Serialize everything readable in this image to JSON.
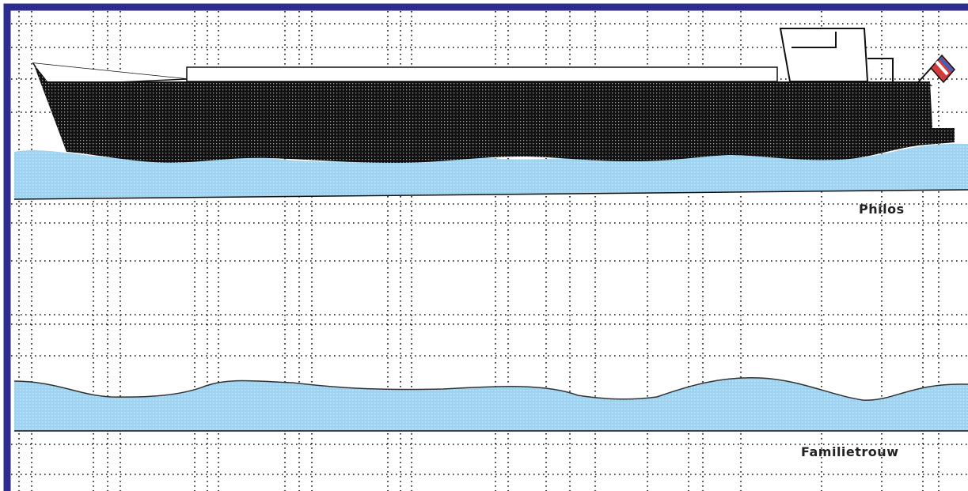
{
  "colors": {
    "frame": "#2d2d8f",
    "grid": "#111111",
    "water": "#9fd2ee",
    "hull": "#111111",
    "deck": "#ffffff",
    "flag_red": "#d23b3b",
    "flag_white": "#ffffff",
    "flag_blue": "#3f5fc0"
  },
  "lanes": [
    {
      "name": "Philos"
    },
    {
      "name": "Familietrouw"
    }
  ],
  "icons": [
    "ship-icon",
    "flag-icon"
  ]
}
